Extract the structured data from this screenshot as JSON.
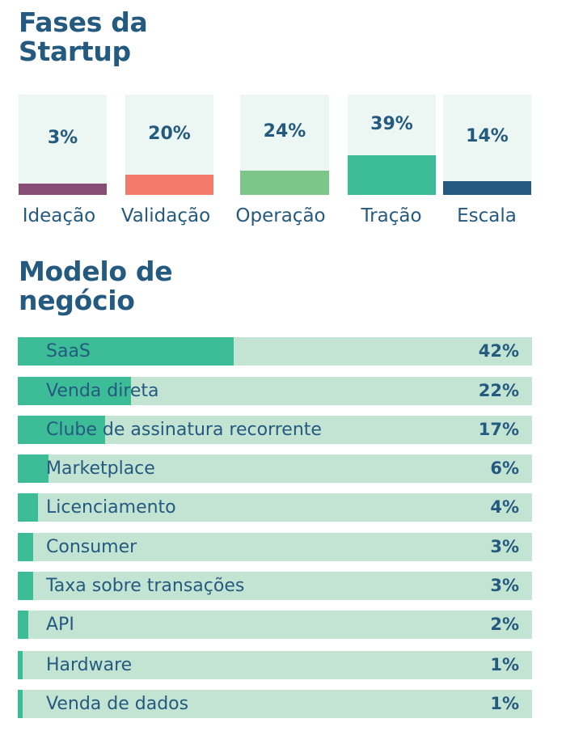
{
  "chart_data": [
    {
      "type": "bar",
      "title": "Fases da Startup",
      "categories": [
        "Ideação",
        "Validação",
        "Operação",
        "Tração",
        "Escala"
      ],
      "values": [
        3,
        20,
        24,
        39,
        14
      ],
      "value_labels": [
        "3%",
        "20%",
        "24%",
        "39%",
        "14%"
      ],
      "colors": [
        "#874d74",
        "#f27b6b",
        "#7cc68a",
        "#3dbd97",
        "#245a7f"
      ],
      "unit": "%",
      "ylim": [
        0,
        100
      ]
    },
    {
      "type": "bar",
      "orientation": "horizontal",
      "title": "Modelo de negócio",
      "categories": [
        "SaaS",
        "Venda direta",
        "Clube de assinatura recorrente",
        "Marketplace",
        "Licenciamento",
        "Consumer",
        "Taxa sobre transações",
        "API",
        "Hardware",
        "Venda de dados"
      ],
      "values": [
        42,
        22,
        17,
        6,
        4,
        3,
        3,
        2,
        1,
        1
      ],
      "value_labels": [
        "42%",
        "22%",
        "17%",
        "6%",
        "4%",
        "3%",
        "3%",
        "2%",
        "1%",
        "1%"
      ],
      "fill_color": "#3dbd97",
      "track_color": "#c3e4d3",
      "unit": "%",
      "xlim": [
        0,
        100
      ]
    }
  ],
  "section1": {
    "title_line1": "Fases da",
    "title_line2": "Startup"
  },
  "section2": {
    "title_line1": "Modelo de",
    "title_line2": "negócio"
  }
}
